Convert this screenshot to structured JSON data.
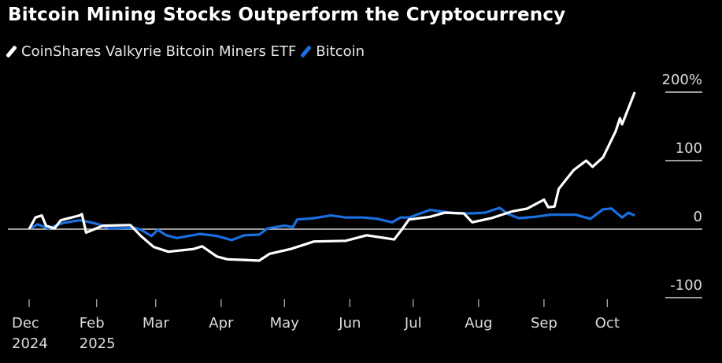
{
  "chart_data": {
    "type": "line",
    "title": "Bitcoin Mining Stocks Outperform the Cryptocurrency",
    "ylabel": "",
    "xlabel": "",
    "ylim": [
      -100,
      200
    ],
    "y_ticks": [
      "200%",
      "100",
      "0",
      "-100"
    ],
    "y_tick_values": [
      200,
      100,
      0,
      -100
    ],
    "x_ticks": [
      {
        "date": "2024-12-31",
        "label": "Dec",
        "sublabel": "2024"
      },
      {
        "date": "2025-02-01",
        "label": "Feb",
        "sublabel": "2025"
      },
      {
        "date": "2025-03-01",
        "label": "Mar",
        "sublabel": ""
      },
      {
        "date": "2025-04-01",
        "label": "Apr",
        "sublabel": ""
      },
      {
        "date": "2025-05-01",
        "label": "May",
        "sublabel": ""
      },
      {
        "date": "2025-06-01",
        "label": "Jun",
        "sublabel": ""
      },
      {
        "date": "2025-07-01",
        "label": "Jul",
        "sublabel": ""
      },
      {
        "date": "2025-08-01",
        "label": "Aug",
        "sublabel": ""
      },
      {
        "date": "2025-09-01",
        "label": "Sep",
        "sublabel": ""
      },
      {
        "date": "2025-10-01",
        "label": "Oct",
        "sublabel": ""
      }
    ],
    "legend_position": "top-left",
    "series": [
      {
        "name": "CoinShares Valkyrie Bitcoin Miners ETF",
        "color": "#ffffff",
        "points": [
          [
            "2024-12-31",
            0
          ],
          [
            "2025-01-03",
            17
          ],
          [
            "2025-01-06",
            20
          ],
          [
            "2025-01-08",
            5
          ],
          [
            "2025-01-12",
            1
          ],
          [
            "2025-01-15",
            13
          ],
          [
            "2025-01-24",
            20
          ],
          [
            "2025-01-25",
            22
          ],
          [
            "2025-01-27",
            -5
          ],
          [
            "2025-02-04",
            5
          ],
          [
            "2025-02-17",
            6
          ],
          [
            "2025-02-22",
            -10
          ],
          [
            "2025-02-28",
            -26
          ],
          [
            "2025-03-07",
            -33
          ],
          [
            "2025-03-19",
            -29
          ],
          [
            "2025-03-23",
            -25
          ],
          [
            "2025-03-30",
            -40
          ],
          [
            "2025-04-04",
            -44
          ],
          [
            "2025-04-12",
            -45
          ],
          [
            "2025-04-19",
            -46
          ],
          [
            "2025-04-24",
            -36
          ],
          [
            "2025-05-04",
            -29
          ],
          [
            "2025-05-15",
            -18
          ],
          [
            "2025-05-30",
            -17
          ],
          [
            "2025-06-09",
            -9
          ],
          [
            "2025-06-22",
            -15
          ],
          [
            "2025-06-26",
            1
          ],
          [
            "2025-06-29",
            14
          ],
          [
            "2025-07-09",
            18
          ],
          [
            "2025-07-16",
            24
          ],
          [
            "2025-07-25",
            23
          ],
          [
            "2025-07-29",
            10
          ],
          [
            "2025-08-07",
            16
          ],
          [
            "2025-08-17",
            26
          ],
          [
            "2025-08-24",
            30
          ],
          [
            "2025-09-01",
            43
          ],
          [
            "2025-09-03",
            32
          ],
          [
            "2025-09-06",
            33
          ],
          [
            "2025-09-08",
            59
          ],
          [
            "2025-09-15",
            86
          ],
          [
            "2025-09-21",
            100
          ],
          [
            "2025-09-24",
            91
          ],
          [
            "2025-09-29",
            105
          ],
          [
            "2025-10-05",
            143
          ],
          [
            "2025-10-07",
            162
          ],
          [
            "2025-10-08",
            153
          ],
          [
            "2025-10-14",
            200
          ]
        ]
      },
      {
        "name": "Bitcoin",
        "color": "#1a6fe0",
        "points": [
          [
            "2024-12-31",
            0
          ],
          [
            "2025-01-04",
            7
          ],
          [
            "2025-01-09",
            1
          ],
          [
            "2025-01-16",
            9
          ],
          [
            "2025-01-24",
            13
          ],
          [
            "2025-01-29",
            10
          ],
          [
            "2025-02-02",
            7
          ],
          [
            "2025-02-07",
            1
          ],
          [
            "2025-02-19",
            2
          ],
          [
            "2025-02-22",
            -1
          ],
          [
            "2025-02-27",
            -10
          ],
          [
            "2025-03-02",
            -1
          ],
          [
            "2025-03-06",
            -9
          ],
          [
            "2025-03-11",
            -13
          ],
          [
            "2025-03-22",
            -7
          ],
          [
            "2025-03-30",
            -10
          ],
          [
            "2025-04-06",
            -16
          ],
          [
            "2025-04-12",
            -9
          ],
          [
            "2025-04-19",
            -8
          ],
          [
            "2025-04-23",
            1
          ],
          [
            "2025-05-01",
            5
          ],
          [
            "2025-05-05",
            3
          ],
          [
            "2025-05-07",
            14
          ],
          [
            "2025-05-15",
            16
          ],
          [
            "2025-05-23",
            20
          ],
          [
            "2025-05-30",
            17
          ],
          [
            "2025-06-07",
            17
          ],
          [
            "2025-06-14",
            15
          ],
          [
            "2025-06-21",
            10
          ],
          [
            "2025-06-25",
            17
          ],
          [
            "2025-06-29",
            17
          ],
          [
            "2025-07-09",
            28
          ],
          [
            "2025-07-14",
            26
          ],
          [
            "2025-07-22",
            23
          ],
          [
            "2025-07-29",
            23
          ],
          [
            "2025-08-04",
            24
          ],
          [
            "2025-08-11",
            31
          ],
          [
            "2025-08-15",
            22
          ],
          [
            "2025-08-20",
            16
          ],
          [
            "2025-08-28",
            18
          ],
          [
            "2025-09-04",
            21
          ],
          [
            "2025-09-16",
            21
          ],
          [
            "2025-09-23",
            15
          ],
          [
            "2025-09-29",
            29
          ],
          [
            "2025-10-03",
            30
          ],
          [
            "2025-10-08",
            17
          ],
          [
            "2025-10-11",
            24
          ],
          [
            "2025-10-14",
            20
          ]
        ]
      }
    ]
  }
}
